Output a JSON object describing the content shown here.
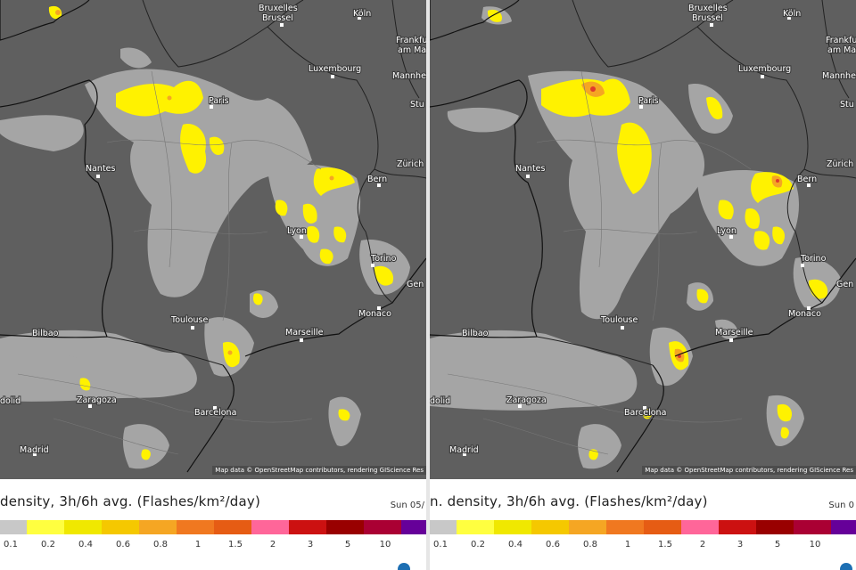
{
  "map": {
    "attribution": "Map data © OpenStreetMap contributors, rendering GIScience Res",
    "colors": {
      "background": "#5f5f5f",
      "precip_gray": "#a9a9a9",
      "flash_yellow": "#fff200",
      "flash_orange": "#f5a623",
      "flash_red": "#e03a2d"
    }
  },
  "panels": [
    {
      "legend_title": "density, 3h/6h avg. (Flashes/km²/day)",
      "date_text": "Sun 05/"
    },
    {
      "legend_title": "n. density, 3h/6h avg. (Flashes/km²/day)",
      "date_text": "Sun 0"
    }
  ],
  "cities": [
    {
      "name": "Bruxelles",
      "name2": "Brussel"
    },
    {
      "name": "Köln"
    },
    {
      "name": "Frankfu",
      "name2": "am Mai"
    },
    {
      "name": "Luxembourg"
    },
    {
      "name": "Mannhei"
    },
    {
      "name": "Stu"
    },
    {
      "name": "Paris"
    },
    {
      "name": "Nantes"
    },
    {
      "name": "Zürich"
    },
    {
      "name": "Bern"
    },
    {
      "name": "Lyon"
    },
    {
      "name": "Torino"
    },
    {
      "name": "Gen"
    },
    {
      "name": "Monaco"
    },
    {
      "name": "Marseille"
    },
    {
      "name": "Toulouse"
    },
    {
      "name": "Bilbao"
    },
    {
      "name": "Zaragoza"
    },
    {
      "name": "Barcelona"
    },
    {
      "name": "Madrid"
    },
    {
      "name": "dolid"
    }
  ],
  "legend": {
    "colors": [
      "#c8c8c8",
      "#ffff40",
      "#f0e800",
      "#f5c800",
      "#f5a623",
      "#f07820",
      "#e65c14",
      "#ff6699",
      "#cc1111",
      "#990000",
      "#aa0033",
      "#660099",
      "#aa11cc",
      "#cc66ff"
    ],
    "labels": [
      "0.1",
      "0.2",
      "0.4",
      "0.6",
      "0.8",
      "1",
      "1.5",
      "2",
      "3",
      "5",
      "10"
    ]
  }
}
